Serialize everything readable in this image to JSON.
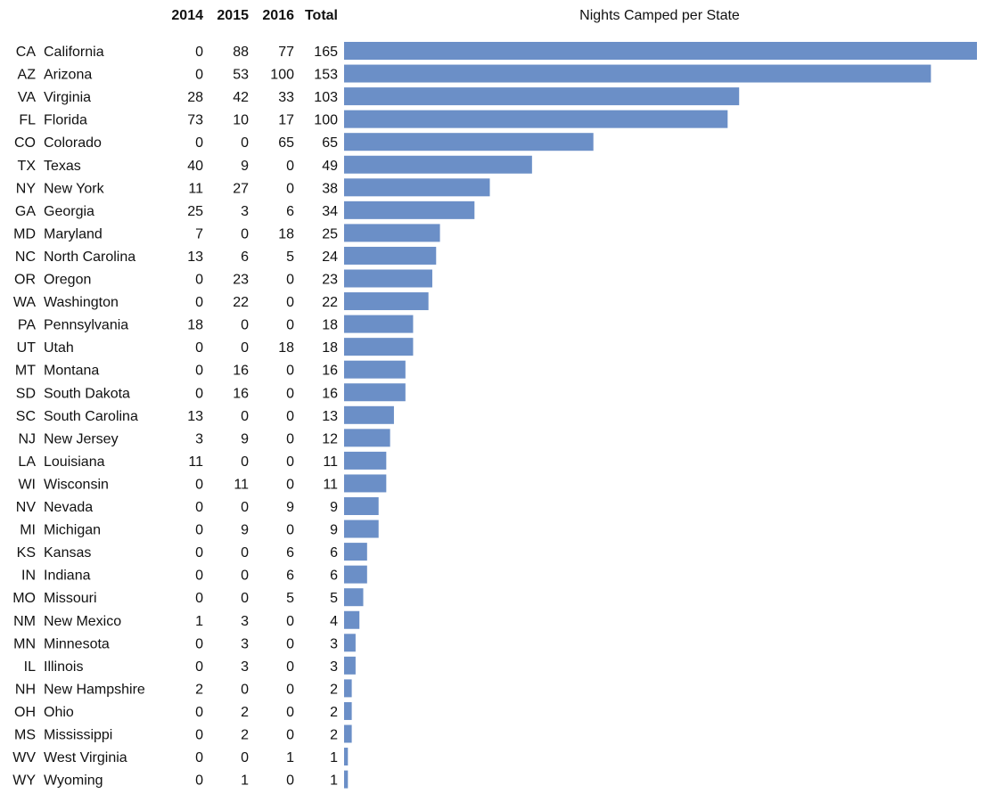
{
  "chart_data": {
    "type": "bar",
    "orientation": "horizontal",
    "title": "Nights Camped per State",
    "columns": [
      "2014",
      "2015",
      "2016",
      "Total"
    ],
    "bar_color": "#6b8fc7",
    "xlim": [
      0,
      165
    ],
    "rows": [
      {
        "abbr": "CA",
        "state": "California",
        "y2014": 0,
        "y2015": 88,
        "y2016": 77,
        "total": 165
      },
      {
        "abbr": "AZ",
        "state": "Arizona",
        "y2014": 0,
        "y2015": 53,
        "y2016": 100,
        "total": 153
      },
      {
        "abbr": "VA",
        "state": "Virginia",
        "y2014": 28,
        "y2015": 42,
        "y2016": 33,
        "total": 103
      },
      {
        "abbr": "FL",
        "state": "Florida",
        "y2014": 73,
        "y2015": 10,
        "y2016": 17,
        "total": 100
      },
      {
        "abbr": "CO",
        "state": "Colorado",
        "y2014": 0,
        "y2015": 0,
        "y2016": 65,
        "total": 65
      },
      {
        "abbr": "TX",
        "state": "Texas",
        "y2014": 40,
        "y2015": 9,
        "y2016": 0,
        "total": 49
      },
      {
        "abbr": "NY",
        "state": "New York",
        "y2014": 11,
        "y2015": 27,
        "y2016": 0,
        "total": 38
      },
      {
        "abbr": "GA",
        "state": "Georgia",
        "y2014": 25,
        "y2015": 3,
        "y2016": 6,
        "total": 34
      },
      {
        "abbr": "MD",
        "state": "Maryland",
        "y2014": 7,
        "y2015": 0,
        "y2016": 18,
        "total": 25
      },
      {
        "abbr": "NC",
        "state": "North Carolina",
        "y2014": 13,
        "y2015": 6,
        "y2016": 5,
        "total": 24
      },
      {
        "abbr": "OR",
        "state": "Oregon",
        "y2014": 0,
        "y2015": 23,
        "y2016": 0,
        "total": 23
      },
      {
        "abbr": "WA",
        "state": "Washington",
        "y2014": 0,
        "y2015": 22,
        "y2016": 0,
        "total": 22
      },
      {
        "abbr": "PA",
        "state": "Pennsylvania",
        "y2014": 18,
        "y2015": 0,
        "y2016": 0,
        "total": 18
      },
      {
        "abbr": "UT",
        "state": "Utah",
        "y2014": 0,
        "y2015": 0,
        "y2016": 18,
        "total": 18
      },
      {
        "abbr": "MT",
        "state": "Montana",
        "y2014": 0,
        "y2015": 16,
        "y2016": 0,
        "total": 16
      },
      {
        "abbr": "SD",
        "state": "South Dakota",
        "y2014": 0,
        "y2015": 16,
        "y2016": 0,
        "total": 16
      },
      {
        "abbr": "SC",
        "state": "South Carolina",
        "y2014": 13,
        "y2015": 0,
        "y2016": 0,
        "total": 13
      },
      {
        "abbr": "NJ",
        "state": "New Jersey",
        "y2014": 3,
        "y2015": 9,
        "y2016": 0,
        "total": 12
      },
      {
        "abbr": "LA",
        "state": "Louisiana",
        "y2014": 11,
        "y2015": 0,
        "y2016": 0,
        "total": 11
      },
      {
        "abbr": "WI",
        "state": "Wisconsin",
        "y2014": 0,
        "y2015": 11,
        "y2016": 0,
        "total": 11
      },
      {
        "abbr": "NV",
        "state": "Nevada",
        "y2014": 0,
        "y2015": 0,
        "y2016": 9,
        "total": 9
      },
      {
        "abbr": "MI",
        "state": "Michigan",
        "y2014": 0,
        "y2015": 9,
        "y2016": 0,
        "total": 9
      },
      {
        "abbr": "KS",
        "state": "Kansas",
        "y2014": 0,
        "y2015": 0,
        "y2016": 6,
        "total": 6
      },
      {
        "abbr": "IN",
        "state": "Indiana",
        "y2014": 0,
        "y2015": 0,
        "y2016": 6,
        "total": 6
      },
      {
        "abbr": "MO",
        "state": "Missouri",
        "y2014": 0,
        "y2015": 0,
        "y2016": 5,
        "total": 5
      },
      {
        "abbr": "NM",
        "state": "New Mexico",
        "y2014": 1,
        "y2015": 3,
        "y2016": 0,
        "total": 4
      },
      {
        "abbr": "MN",
        "state": "Minnesota",
        "y2014": 0,
        "y2015": 3,
        "y2016": 0,
        "total": 3
      },
      {
        "abbr": "IL",
        "state": "Illinois",
        "y2014": 0,
        "y2015": 3,
        "y2016": 0,
        "total": 3
      },
      {
        "abbr": "NH",
        "state": "New Hampshire",
        "y2014": 2,
        "y2015": 0,
        "y2016": 0,
        "total": 2
      },
      {
        "abbr": "OH",
        "state": "Ohio",
        "y2014": 0,
        "y2015": 2,
        "y2016": 0,
        "total": 2
      },
      {
        "abbr": "MS",
        "state": "Mississippi",
        "y2014": 0,
        "y2015": 2,
        "y2016": 0,
        "total": 2
      },
      {
        "abbr": "WV",
        "state": "West Virginia",
        "y2014": 0,
        "y2015": 0,
        "y2016": 1,
        "total": 1
      },
      {
        "abbr": "WY",
        "state": "Wyoming",
        "y2014": 0,
        "y2015": 1,
        "y2016": 0,
        "total": 1
      }
    ]
  }
}
